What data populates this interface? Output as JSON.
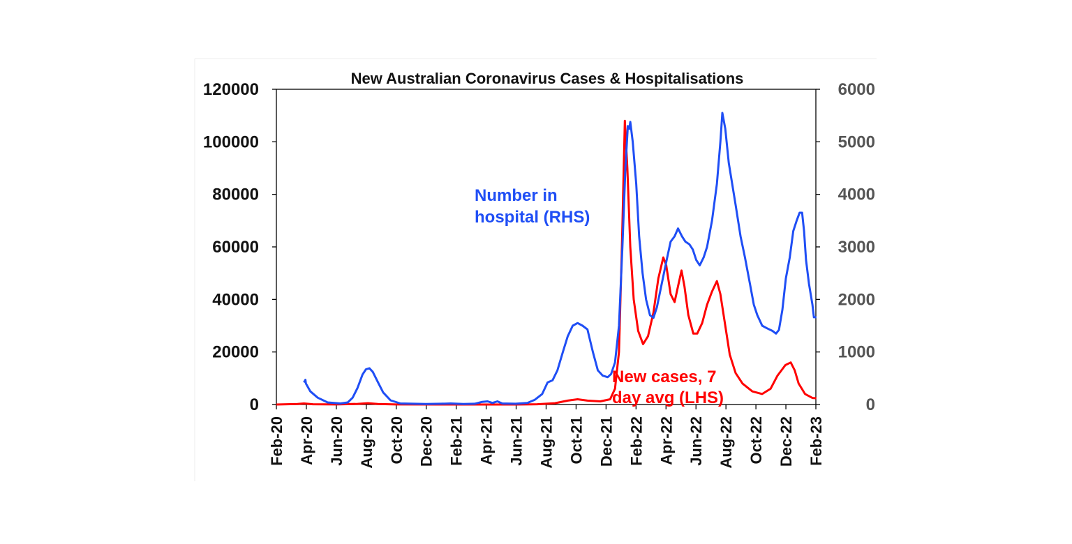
{
  "chart_data": {
    "type": "line",
    "title": "New Australian Coronavirus Cases & Hospitalisations",
    "x_tick_labels": [
      "Feb-20",
      "Apr-20",
      "Jun-20",
      "Aug-20",
      "Oct-20",
      "Dec-20",
      "Feb-21",
      "Apr-21",
      "Jun-21",
      "Aug-21",
      "Oct-21",
      "Dec-21",
      "Feb-22",
      "Apr-22",
      "Jun-22",
      "Aug-22",
      "Oct-22",
      "Dec-22",
      "Feb-23"
    ],
    "y_left": {
      "ylim": [
        0,
        120000
      ],
      "ticks": [
        "0",
        "20000",
        "40000",
        "60000",
        "80000",
        "100000",
        "120000"
      ]
    },
    "y_right": {
      "ylim": [
        0,
        6000
      ],
      "ticks": [
        "0",
        "1000",
        "2000",
        "3000",
        "4000",
        "5000",
        "6000"
      ]
    },
    "grid": false,
    "series": [
      {
        "name": "Number in hospital (RHS)",
        "label_lines": [
          "Number in",
          "hospital (RHS)"
        ],
        "axis": "right",
        "color": "#1f4ef5",
        "points": [
          [
            "2020-03-28",
            420
          ],
          [
            "2020-03-31",
            470
          ],
          [
            "2020-04-01",
            400
          ],
          [
            "2020-04-10",
            250
          ],
          [
            "2020-04-25",
            130
          ],
          [
            "2020-05-15",
            40
          ],
          [
            "2020-06-10",
            20
          ],
          [
            "2020-06-25",
            40
          ],
          [
            "2020-07-05",
            130
          ],
          [
            "2020-07-15",
            320
          ],
          [
            "2020-07-25",
            570
          ],
          [
            "2020-08-01",
            670
          ],
          [
            "2020-08-08",
            690
          ],
          [
            "2020-08-15",
            620
          ],
          [
            "2020-08-25",
            430
          ],
          [
            "2020-09-05",
            230
          ],
          [
            "2020-09-20",
            80
          ],
          [
            "2020-10-10",
            20
          ],
          [
            "2020-12-01",
            10
          ],
          [
            "2021-01-01",
            15
          ],
          [
            "2021-01-20",
            20
          ],
          [
            "2021-02-15",
            10
          ],
          [
            "2021-03-10",
            15
          ],
          [
            "2021-03-25",
            50
          ],
          [
            "2021-04-05",
            60
          ],
          [
            "2021-04-15",
            30
          ],
          [
            "2021-04-25",
            60
          ],
          [
            "2021-05-05",
            20
          ],
          [
            "2021-06-01",
            15
          ],
          [
            "2021-06-25",
            30
          ],
          [
            "2021-07-10",
            90
          ],
          [
            "2021-07-25",
            200
          ],
          [
            "2021-08-05",
            420
          ],
          [
            "2021-08-15",
            460
          ],
          [
            "2021-08-25",
            650
          ],
          [
            "2021-09-05",
            1000
          ],
          [
            "2021-09-15",
            1300
          ],
          [
            "2021-09-25",
            1500
          ],
          [
            "2021-10-05",
            1550
          ],
          [
            "2021-10-15",
            1500
          ],
          [
            "2021-10-25",
            1430
          ],
          [
            "2021-11-05",
            1000
          ],
          [
            "2021-11-15",
            650
          ],
          [
            "2021-11-25",
            550
          ],
          [
            "2021-12-05",
            520
          ],
          [
            "2021-12-12",
            580
          ],
          [
            "2021-12-20",
            800
          ],
          [
            "2021-12-28",
            1500
          ],
          [
            "2022-01-04",
            3000
          ],
          [
            "2022-01-10",
            4500
          ],
          [
            "2022-01-15",
            5300
          ],
          [
            "2022-01-18",
            5250
          ],
          [
            "2022-01-20",
            5380
          ],
          [
            "2022-01-25",
            5000
          ],
          [
            "2022-02-01",
            4200
          ],
          [
            "2022-02-07",
            3200
          ],
          [
            "2022-02-14",
            2500
          ],
          [
            "2022-02-21",
            2000
          ],
          [
            "2022-03-01",
            1700
          ],
          [
            "2022-03-08",
            1650
          ],
          [
            "2022-03-15",
            1850
          ],
          [
            "2022-03-25",
            2300
          ],
          [
            "2022-04-05",
            2800
          ],
          [
            "2022-04-12",
            3100
          ],
          [
            "2022-04-20",
            3200
          ],
          [
            "2022-04-27",
            3350
          ],
          [
            "2022-05-05",
            3200
          ],
          [
            "2022-05-12",
            3100
          ],
          [
            "2022-05-20",
            3050
          ],
          [
            "2022-05-27",
            2950
          ],
          [
            "2022-06-03",
            2750
          ],
          [
            "2022-06-10",
            2650
          ],
          [
            "2022-06-18",
            2800
          ],
          [
            "2022-06-25",
            3000
          ],
          [
            "2022-07-05",
            3500
          ],
          [
            "2022-07-15",
            4200
          ],
          [
            "2022-07-22",
            5000
          ],
          [
            "2022-07-26",
            5550
          ],
          [
            "2022-08-01",
            5250
          ],
          [
            "2022-08-08",
            4600
          ],
          [
            "2022-08-15",
            4200
          ],
          [
            "2022-08-22",
            3800
          ],
          [
            "2022-09-01",
            3200
          ],
          [
            "2022-09-10",
            2800
          ],
          [
            "2022-09-20",
            2300
          ],
          [
            "2022-09-28",
            1900
          ],
          [
            "2022-10-05",
            1700
          ],
          [
            "2022-10-15",
            1500
          ],
          [
            "2022-10-25",
            1450
          ],
          [
            "2022-11-05",
            1400
          ],
          [
            "2022-11-12",
            1350
          ],
          [
            "2022-11-18",
            1420
          ],
          [
            "2022-11-25",
            1800
          ],
          [
            "2022-12-02",
            2400
          ],
          [
            "2022-12-10",
            2800
          ],
          [
            "2022-12-17",
            3300
          ],
          [
            "2022-12-24",
            3500
          ],
          [
            "2022-12-30",
            3650
          ],
          [
            "2023-01-04",
            3650
          ],
          [
            "2023-01-08",
            3300
          ],
          [
            "2023-01-12",
            2750
          ],
          [
            "2023-01-18",
            2300
          ],
          [
            "2023-01-25",
            1900
          ],
          [
            "2023-01-28",
            1660
          ],
          [
            "2023-02-02",
            1660
          ]
        ]
      },
      {
        "name": "New cases, 7 day avg (LHS)",
        "label_lines": [
          "New cases, 7",
          "day avg (LHS)"
        ],
        "axis": "left",
        "color": "#ff0000",
        "points": [
          [
            "2020-02-01",
            0
          ],
          [
            "2020-03-15",
            200
          ],
          [
            "2020-03-28",
            400
          ],
          [
            "2020-04-15",
            100
          ],
          [
            "2020-06-01",
            20
          ],
          [
            "2020-07-15",
            250
          ],
          [
            "2020-08-05",
            500
          ],
          [
            "2020-08-25",
            200
          ],
          [
            "2020-10-01",
            20
          ],
          [
            "2021-01-01",
            10
          ],
          [
            "2021-06-01",
            10
          ],
          [
            "2021-07-15",
            100
          ],
          [
            "2021-08-20",
            500
          ],
          [
            "2021-09-15",
            1500
          ],
          [
            "2021-10-05",
            2000
          ],
          [
            "2021-10-25",
            1500
          ],
          [
            "2021-11-20",
            1200
          ],
          [
            "2021-12-10",
            2000
          ],
          [
            "2021-12-20",
            6000
          ],
          [
            "2021-12-28",
            20000
          ],
          [
            "2022-01-03",
            60000
          ],
          [
            "2022-01-09",
            108000
          ],
          [
            "2022-01-14",
            90000
          ],
          [
            "2022-01-20",
            60000
          ],
          [
            "2022-01-27",
            40000
          ],
          [
            "2022-02-05",
            28000
          ],
          [
            "2022-02-15",
            23000
          ],
          [
            "2022-02-25",
            26000
          ],
          [
            "2022-03-08",
            35000
          ],
          [
            "2022-03-18",
            48000
          ],
          [
            "2022-03-28",
            56000
          ],
          [
            "2022-04-03",
            53000
          ],
          [
            "2022-04-12",
            42000
          ],
          [
            "2022-04-20",
            39000
          ],
          [
            "2022-04-27",
            45000
          ],
          [
            "2022-05-04",
            51000
          ],
          [
            "2022-05-10",
            45000
          ],
          [
            "2022-05-18",
            34000
          ],
          [
            "2022-05-28",
            27000
          ],
          [
            "2022-06-05",
            27000
          ],
          [
            "2022-06-15",
            31000
          ],
          [
            "2022-06-25",
            38000
          ],
          [
            "2022-07-05",
            43000
          ],
          [
            "2022-07-15",
            47000
          ],
          [
            "2022-07-22",
            42000
          ],
          [
            "2022-08-01",
            30000
          ],
          [
            "2022-08-10",
            19000
          ],
          [
            "2022-08-22",
            12000
          ],
          [
            "2022-09-05",
            8000
          ],
          [
            "2022-09-25",
            5000
          ],
          [
            "2022-10-15",
            4000
          ],
          [
            "2022-11-01",
            6000
          ],
          [
            "2022-11-15",
            11000
          ],
          [
            "2022-12-01",
            15000
          ],
          [
            "2022-12-12",
            16000
          ],
          [
            "2022-12-20",
            13000
          ],
          [
            "2022-12-28",
            8000
          ],
          [
            "2023-01-10",
            4000
          ],
          [
            "2023-01-25",
            2500
          ],
          [
            "2023-02-02",
            2400
          ]
        ]
      }
    ]
  }
}
